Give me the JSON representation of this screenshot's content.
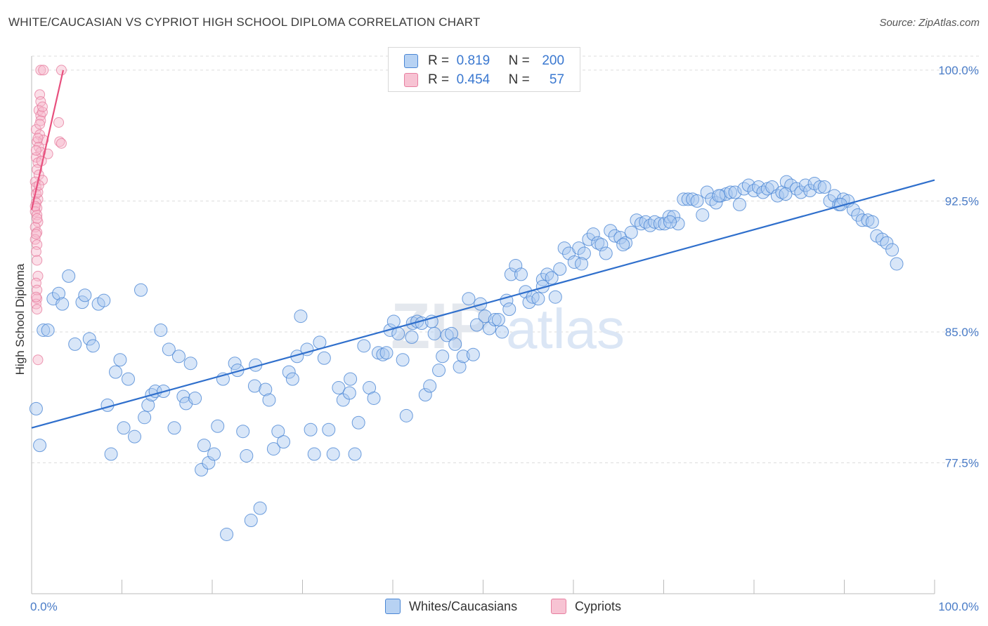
{
  "title": "WHITE/CAUCASIAN VS CYPRIOT HIGH SCHOOL DIPLOMA CORRELATION CHART",
  "source": "Source: ZipAtlas.com",
  "colors": {
    "blue_fill": "#a9c8f0",
    "blue_stroke": "#4a86d4",
    "blue_line": "#2f6fcc",
    "pink_fill": "#f6b8cb",
    "pink_stroke": "#e77fa0",
    "pink_line": "#e8507e",
    "axis_text": "#4a7cc7",
    "grid": "#dddddd"
  },
  "legend": {
    "rows": [
      {
        "r_label": "R =",
        "r_value": "0.819",
        "n_label": "N =",
        "n_value": "200",
        "series": "blue"
      },
      {
        "r_label": "R =",
        "r_value": "0.454",
        "n_label": "N =",
        "n_value": "57",
        "series": "pink"
      }
    ]
  },
  "bottom_legend": [
    {
      "label": "Whites/Caucasians",
      "series": "blue"
    },
    {
      "label": "Cypriots",
      "series": "pink"
    }
  ],
  "chart_data": {
    "type": "scatter",
    "title": "WHITE/CAUCASIAN VS CYPRIOT HIGH SCHOOL DIPLOMA CORRELATION CHART",
    "xlabel": "",
    "ylabel": "High School Diploma",
    "xlim": [
      0,
      100
    ],
    "ylim": [
      70.0,
      100.8
    ],
    "x_tick_labels": [
      "0.0%",
      "100.0%"
    ],
    "y_ticks": [
      77.5,
      85.0,
      92.5,
      100.0
    ],
    "y_tick_labels": [
      "77.5%",
      "85.0%",
      "92.5%",
      "100.0%"
    ],
    "grid": true,
    "watermark": "ZIPatlas",
    "series": [
      {
        "name": "Whites/Caucasians",
        "color": "blue",
        "trend": {
          "x": [
            0,
            100
          ],
          "y": [
            79.5,
            93.7
          ]
        },
        "points": [
          [
            0.5,
            80.6
          ],
          [
            0.9,
            78.5
          ],
          [
            1.3,
            85.1
          ],
          [
            1.8,
            85.1
          ],
          [
            2.4,
            86.9
          ],
          [
            3.0,
            87.2
          ],
          [
            3.4,
            86.6
          ],
          [
            4.1,
            88.2
          ],
          [
            4.8,
            84.3
          ],
          [
            5.6,
            86.7
          ],
          [
            5.9,
            87.1
          ],
          [
            6.4,
            84.6
          ],
          [
            6.8,
            84.2
          ],
          [
            7.4,
            86.6
          ],
          [
            8.0,
            86.8
          ],
          [
            8.4,
            80.8
          ],
          [
            8.8,
            78.0
          ],
          [
            9.3,
            82.7
          ],
          [
            9.8,
            83.4
          ],
          [
            10.2,
            79.5
          ],
          [
            10.7,
            82.3
          ],
          [
            11.4,
            79.0
          ],
          [
            12.1,
            87.4
          ],
          [
            12.5,
            80.1
          ],
          [
            12.9,
            80.8
          ],
          [
            13.3,
            81.4
          ],
          [
            13.7,
            81.6
          ],
          [
            14.3,
            85.1
          ],
          [
            14.6,
            81.6
          ],
          [
            15.2,
            84.0
          ],
          [
            15.8,
            79.5
          ],
          [
            16.3,
            83.6
          ],
          [
            16.8,
            81.3
          ],
          [
            17.1,
            80.9
          ],
          [
            17.6,
            83.2
          ],
          [
            18.1,
            81.2
          ],
          [
            18.8,
            77.1
          ],
          [
            19.1,
            78.5
          ],
          [
            19.6,
            77.5
          ],
          [
            20.2,
            78.0
          ],
          [
            20.6,
            79.6
          ],
          [
            21.2,
            82.3
          ],
          [
            21.6,
            73.4
          ],
          [
            22.5,
            83.2
          ],
          [
            22.8,
            82.8
          ],
          [
            23.4,
            79.3
          ],
          [
            23.8,
            77.9
          ],
          [
            24.3,
            74.2
          ],
          [
            24.7,
            81.9
          ],
          [
            25.3,
            74.9
          ],
          [
            25.9,
            81.7
          ],
          [
            26.3,
            81.1
          ],
          [
            26.8,
            78.3
          ],
          [
            27.3,
            79.3
          ],
          [
            27.9,
            78.7
          ],
          [
            28.5,
            82.7
          ],
          [
            28.9,
            82.3
          ],
          [
            29.4,
            83.6
          ],
          [
            29.8,
            85.9
          ],
          [
            30.5,
            84.0
          ],
          [
            30.9,
            79.4
          ],
          [
            31.3,
            78.0
          ],
          [
            31.9,
            84.4
          ],
          [
            32.4,
            83.5
          ],
          [
            32.9,
            79.4
          ],
          [
            33.4,
            78.0
          ],
          [
            34.0,
            81.8
          ],
          [
            34.5,
            81.1
          ],
          [
            35.2,
            81.5
          ],
          [
            35.8,
            78.0
          ],
          [
            36.2,
            79.8
          ],
          [
            36.8,
            84.2
          ],
          [
            37.4,
            81.8
          ],
          [
            37.9,
            81.2
          ],
          [
            38.4,
            83.8
          ],
          [
            38.9,
            83.7
          ],
          [
            39.3,
            83.8
          ],
          [
            39.7,
            85.1
          ],
          [
            40.1,
            85.6
          ],
          [
            40.6,
            84.9
          ],
          [
            41.1,
            83.4
          ],
          [
            41.5,
            80.2
          ],
          [
            42.2,
            85.5
          ],
          [
            42.7,
            85.6
          ],
          [
            43.2,
            85.5
          ],
          [
            43.6,
            81.4
          ],
          [
            44.1,
            81.9
          ],
          [
            44.6,
            84.9
          ],
          [
            45.1,
            82.8
          ],
          [
            45.5,
            83.6
          ],
          [
            46.0,
            84.8
          ],
          [
            46.5,
            84.9
          ],
          [
            46.9,
            84.3
          ],
          [
            47.4,
            83.0
          ],
          [
            47.8,
            83.6
          ],
          [
            48.4,
            86.9
          ],
          [
            48.9,
            83.7
          ],
          [
            49.3,
            85.4
          ],
          [
            49.7,
            86.6
          ],
          [
            50.2,
            85.9
          ],
          [
            50.7,
            85.2
          ],
          [
            51.3,
            85.7
          ],
          [
            51.7,
            85.7
          ],
          [
            52.1,
            85.0
          ],
          [
            52.6,
            86.8
          ],
          [
            53.1,
            88.3
          ],
          [
            53.6,
            88.8
          ],
          [
            54.2,
            88.3
          ],
          [
            54.7,
            87.3
          ],
          [
            55.1,
            86.7
          ],
          [
            55.5,
            87.0
          ],
          [
            56.1,
            86.9
          ],
          [
            56.6,
            88.0
          ],
          [
            57.1,
            88.3
          ],
          [
            57.6,
            88.1
          ],
          [
            58.0,
            87.0
          ],
          [
            58.5,
            88.6
          ],
          [
            59.0,
            89.8
          ],
          [
            59.5,
            89.5
          ],
          [
            60.1,
            89.0
          ],
          [
            60.6,
            89.8
          ],
          [
            61.2,
            89.5
          ],
          [
            61.7,
            90.3
          ],
          [
            62.2,
            90.6
          ],
          [
            62.7,
            90.1
          ],
          [
            63.1,
            90.0
          ],
          [
            63.6,
            89.5
          ],
          [
            64.1,
            90.8
          ],
          [
            64.6,
            90.5
          ],
          [
            65.2,
            90.4
          ],
          [
            65.8,
            90.1
          ],
          [
            66.4,
            90.7
          ],
          [
            67.0,
            91.4
          ],
          [
            67.5,
            91.2
          ],
          [
            68.0,
            91.3
          ],
          [
            68.5,
            91.1
          ],
          [
            69.0,
            91.3
          ],
          [
            69.6,
            91.2
          ],
          [
            70.1,
            91.2
          ],
          [
            70.6,
            91.6
          ],
          [
            71.1,
            91.6
          ],
          [
            71.6,
            91.2
          ],
          [
            72.2,
            92.6
          ],
          [
            72.7,
            92.6
          ],
          [
            73.2,
            92.6
          ],
          [
            73.7,
            92.5
          ],
          [
            74.3,
            91.7
          ],
          [
            74.8,
            93.0
          ],
          [
            75.3,
            92.6
          ],
          [
            75.8,
            92.4
          ],
          [
            76.3,
            92.8
          ],
          [
            76.9,
            92.9
          ],
          [
            77.4,
            93.0
          ],
          [
            77.9,
            93.0
          ],
          [
            78.4,
            92.3
          ],
          [
            78.9,
            93.2
          ],
          [
            79.4,
            93.4
          ],
          [
            80.0,
            93.1
          ],
          [
            80.5,
            93.3
          ],
          [
            81.0,
            93.0
          ],
          [
            81.5,
            93.2
          ],
          [
            82.0,
            93.3
          ],
          [
            82.6,
            92.8
          ],
          [
            83.1,
            93.0
          ],
          [
            83.6,
            93.6
          ],
          [
            84.1,
            93.4
          ],
          [
            84.7,
            93.2
          ],
          [
            85.2,
            93.0
          ],
          [
            85.7,
            93.4
          ],
          [
            86.2,
            93.1
          ],
          [
            86.7,
            93.5
          ],
          [
            87.3,
            93.3
          ],
          [
            87.8,
            93.3
          ],
          [
            88.4,
            92.5
          ],
          [
            88.9,
            92.8
          ],
          [
            89.4,
            92.3
          ],
          [
            89.9,
            92.6
          ],
          [
            90.4,
            92.5
          ],
          [
            91.0,
            92.0
          ],
          [
            91.5,
            91.7
          ],
          [
            92.0,
            91.4
          ],
          [
            92.6,
            91.4
          ],
          [
            93.1,
            91.3
          ],
          [
            93.6,
            90.5
          ],
          [
            94.2,
            90.3
          ],
          [
            94.7,
            90.1
          ],
          [
            95.3,
            89.7
          ],
          [
            95.8,
            88.9
          ],
          [
            24.8,
            83.1
          ],
          [
            35.3,
            82.3
          ],
          [
            44.3,
            85.6
          ],
          [
            56.6,
            87.6
          ],
          [
            60.9,
            88.9
          ],
          [
            65.5,
            90.0
          ],
          [
            70.7,
            91.3
          ],
          [
            76.1,
            92.8
          ],
          [
            83.5,
            92.9
          ],
          [
            89.6,
            92.3
          ],
          [
            42.1,
            84.7
          ],
          [
            52.9,
            86.3
          ]
        ]
      },
      {
        "name": "Cypriots",
        "color": "pink",
        "trend": {
          "x": [
            0,
            3.5
          ],
          "y": [
            92.0,
            100.0
          ]
        },
        "points": [
          [
            1.0,
            100.0
          ],
          [
            1.3,
            100.0
          ],
          [
            3.3,
            100.0
          ],
          [
            0.9,
            98.6
          ],
          [
            1.0,
            98.2
          ],
          [
            0.8,
            97.7
          ],
          [
            1.0,
            97.4
          ],
          [
            1.2,
            97.6
          ],
          [
            1.0,
            97.1
          ],
          [
            3.0,
            97.0
          ],
          [
            0.5,
            96.6
          ],
          [
            0.9,
            96.3
          ],
          [
            1.3,
            96.0
          ],
          [
            3.1,
            95.9
          ],
          [
            3.3,
            95.8
          ],
          [
            0.6,
            95.9
          ],
          [
            0.8,
            95.6
          ],
          [
            1.0,
            95.3
          ],
          [
            0.5,
            95.0
          ],
          [
            0.7,
            94.7
          ],
          [
            1.8,
            95.2
          ],
          [
            0.6,
            94.3
          ],
          [
            0.8,
            94.0
          ],
          [
            1.2,
            93.7
          ],
          [
            0.4,
            93.6
          ],
          [
            0.5,
            93.3
          ],
          [
            0.5,
            92.9
          ],
          [
            0.7,
            92.6
          ],
          [
            0.5,
            92.4
          ],
          [
            0.6,
            92.1
          ],
          [
            0.4,
            91.9
          ],
          [
            0.6,
            91.7
          ],
          [
            0.7,
            91.3
          ],
          [
            0.4,
            91.0
          ],
          [
            0.6,
            90.7
          ],
          [
            0.4,
            90.3
          ],
          [
            0.6,
            90.0
          ],
          [
            0.5,
            89.6
          ],
          [
            0.7,
            88.2
          ],
          [
            0.5,
            87.8
          ],
          [
            0.6,
            87.4
          ],
          [
            0.6,
            86.9
          ],
          [
            0.5,
            86.6
          ],
          [
            0.6,
            86.3
          ],
          [
            0.7,
            83.4
          ],
          [
            1.2,
            97.9
          ],
          [
            0.9,
            96.9
          ],
          [
            0.5,
            95.4
          ],
          [
            0.7,
            93.0
          ],
          [
            0.4,
            92.2
          ],
          [
            0.6,
            91.5
          ],
          [
            0.5,
            90.6
          ],
          [
            0.6,
            89.1
          ],
          [
            0.5,
            87.0
          ],
          [
            1.1,
            94.8
          ],
          [
            0.8,
            93.4
          ],
          [
            0.7,
            96.1
          ]
        ]
      }
    ]
  }
}
